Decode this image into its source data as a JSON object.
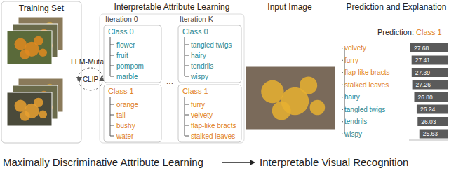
{
  "training_set": {
    "title": "Training Set"
  },
  "loop": {
    "llm": "LLM-Mutate",
    "model": "CLIP"
  },
  "attribute_learning": {
    "title": "Interpretable Attribute Learning",
    "ellipsis": "...",
    "iterations": [
      {
        "label": "Iteration 0",
        "classes": [
          {
            "name": "Class 0",
            "attributes": [
              "flower",
              "fruit",
              "pompom",
              "marble"
            ]
          },
          {
            "name": "Class 1",
            "attributes": [
              "orange",
              "tail",
              "bushy",
              "water"
            ]
          }
        ]
      },
      {
        "label": "Iteration K",
        "classes": [
          {
            "name": "Class 0",
            "attributes": [
              "tangled twigs",
              "hairy",
              "tendrils",
              "wispy"
            ]
          },
          {
            "name": "Class 1",
            "attributes": [
              "furry",
              "velvety",
              "flap-like bracts",
              "stalked leaves"
            ]
          }
        ]
      }
    ]
  },
  "classes": [
    {
      "name": "Class 0",
      "color": "#2b8a94"
    },
    {
      "name": "Class 1",
      "color": "#e0801e"
    }
  ],
  "input_image": {
    "title": "Input Image"
  },
  "prediction": {
    "title": "Prediction and Explanation",
    "label": "Prediction:",
    "class": "Class 1"
  },
  "chart_data": {
    "type": "bar",
    "orientation": "horizontal",
    "categories": [
      "velvety",
      "furry",
      "flap-like bracts",
      "stalked leaves",
      "hairy",
      "tangled twigs",
      "tendrils",
      "wispy"
    ],
    "values": [
      27.68,
      27.41,
      27.39,
      27.26,
      26.8,
      26.24,
      26.03,
      25.63
    ],
    "value_labels": [
      "27.68",
      "27.41",
      "27.39",
      "27.26",
      "26.80",
      "26.24",
      "26.03",
      "25.63"
    ],
    "color": "#5a5a5a",
    "xlim": [
      19,
      28
    ],
    "data_labels": true,
    "tick_labels": "y"
  },
  "footer": {
    "left": "Maximally Discriminative Attribute Learning",
    "right": "Interpretable Visual Recognition"
  }
}
